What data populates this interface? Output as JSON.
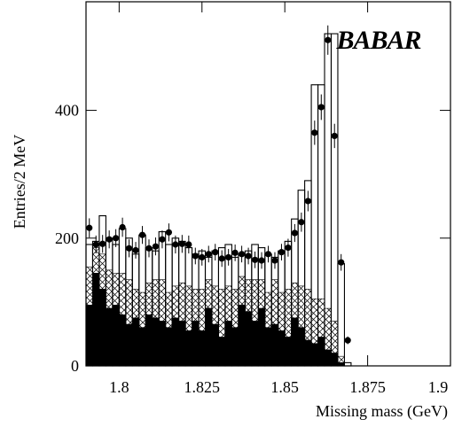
{
  "chart_data": {
    "type": "histogram",
    "title": "BABAR",
    "xlabel": "Missing mass (GeV)",
    "ylabel": "Entries/2 MeV",
    "xlim": [
      1.79,
      1.9
    ],
    "ylim": [
      0,
      570
    ],
    "xticks": [
      1.8,
      1.825,
      1.85,
      1.875,
      1.9
    ],
    "yticks": [
      0,
      200,
      400
    ],
    "bin_start": 1.79,
    "bin_width": 0.002,
    "stack": [
      {
        "pattern": "solid",
        "color": "#000000",
        "values": [
          95,
          145,
          120,
          90,
          95,
          80,
          65,
          75,
          60,
          80,
          75,
          70,
          60,
          75,
          70,
          55,
          70,
          55,
          90,
          65,
          45,
          70,
          60,
          95,
          85,
          70,
          90,
          60,
          65,
          55,
          45,
          75,
          60,
          40,
          35,
          45,
          25,
          20,
          5,
          0
        ]
      },
      {
        "pattern": "crosshatch",
        "color": "#000000",
        "values": [
          60,
          40,
          55,
          60,
          50,
          65,
          70,
          45,
          55,
          50,
          60,
          65,
          55,
          50,
          60,
          70,
          50,
          65,
          45,
          60,
          75,
          55,
          60,
          45,
          50,
          65,
          45,
          55,
          70,
          60,
          75,
          55,
          65,
          80,
          70,
          60,
          65,
          50,
          10,
          0
        ]
      }
    ],
    "total": {
      "color": "#000000",
      "values": [
        190,
        195,
        235,
        200,
        190,
        215,
        200,
        175,
        205,
        185,
        180,
        210,
        190,
        200,
        195,
        185,
        175,
        180,
        170,
        180,
        185,
        190,
        170,
        175,
        180,
        190,
        185,
        175,
        170,
        180,
        195,
        230,
        275,
        290,
        440,
        440,
        520,
        520,
        160,
        5
      ]
    },
    "data": {
      "color": "#000000",
      "values": [
        216,
        190,
        191,
        198,
        200,
        217,
        184,
        181,
        205,
        184,
        187,
        198,
        209,
        190,
        191,
        190,
        172,
        170,
        175,
        178,
        168,
        170,
        177,
        175,
        172,
        166,
        165,
        175,
        165,
        178,
        185,
        208,
        225,
        258,
        365,
        405,
        510,
        360,
        162,
        40
      ],
      "errors": [
        15,
        14,
        14,
        14,
        14,
        15,
        14,
        13,
        14,
        14,
        14,
        14,
        14,
        14,
        14,
        14,
        13,
        13,
        13,
        13,
        13,
        13,
        13,
        13,
        13,
        13,
        13,
        13,
        13,
        13,
        14,
        14,
        15,
        16,
        19,
        20,
        23,
        19,
        13,
        6
      ]
    }
  }
}
